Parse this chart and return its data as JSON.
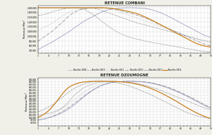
{
  "title1": "RETENUE COMBANI",
  "title2": "RETENUE DZOUMOGNE",
  "ylabel": "Retenue Mm³",
  "legend_labels": [
    "Nivelles 2009",
    "Nivelles 2010",
    "Nivelles 2011",
    "Nivelles 2012",
    "Nivelles 2013",
    "Nivelles 2014"
  ],
  "colors_map": {
    "2009": "#b0b0b0",
    "2010": "#909090",
    "2011": "#a0a0a0",
    "2012": "#808080",
    "2013": "#9090bb",
    "2014": "#c88020"
  },
  "ls_map": {
    "2009": "-",
    "2010": "--",
    "2011": ":",
    "2012": "-.",
    "2013": "-",
    "2014": "-"
  },
  "lw_map": {
    "2009": 0.5,
    "2010": 0.5,
    "2011": 0.5,
    "2012": 0.5,
    "2013": 0.5,
    "2014": 0.9
  },
  "combani": {
    "2009": [
      1.48,
      1.48,
      1.48,
      1.48,
      1.48,
      1.48,
      1.48,
      1.48,
      1.48,
      1.48,
      1.48,
      1.48,
      1.48,
      1.465,
      1.44,
      1.41,
      1.375,
      1.335,
      1.29,
      1.245,
      1.2,
      1.16,
      1.12,
      1.085,
      1.055,
      1.03,
      1.005,
      0.985,
      0.97,
      0.955,
      0.945,
      0.93,
      0.915,
      0.905,
      0.895,
      0.885,
      0.875,
      0.865,
      0.855,
      0.845,
      0.835,
      0.825,
      0.815,
      0.805,
      0.795,
      0.785,
      0.775,
      0.765,
      0.755,
      0.745,
      0.74,
      0.735
    ],
    "2010": [
      1.35,
      1.36,
      1.37,
      1.39,
      1.41,
      1.43,
      1.44,
      1.455,
      1.465,
      1.475,
      1.478,
      1.48,
      1.48,
      1.48,
      1.48,
      1.48,
      1.475,
      1.465,
      1.45,
      1.43,
      1.41,
      1.39,
      1.37,
      1.35,
      1.33,
      1.31,
      1.29,
      1.27,
      1.25,
      1.23,
      1.215,
      1.2,
      1.185,
      1.17,
      1.155,
      1.14,
      1.125,
      1.11,
      1.095,
      1.08,
      1.065,
      1.05,
      1.035,
      1.02,
      1.005,
      0.99,
      0.975,
      0.96,
      0.945,
      0.93,
      0.92,
      0.91
    ],
    "2011": [
      1.1,
      1.13,
      1.16,
      1.19,
      1.22,
      1.26,
      1.3,
      1.34,
      1.37,
      1.4,
      1.42,
      1.44,
      1.455,
      1.468,
      1.475,
      1.478,
      1.48,
      1.48,
      1.48,
      1.478,
      1.47,
      1.46,
      1.445,
      1.43,
      1.41,
      1.39,
      1.37,
      1.35,
      1.33,
      1.31,
      1.29,
      1.27,
      1.25,
      1.23,
      1.21,
      1.19,
      1.17,
      1.15,
      1.13,
      1.11,
      1.09,
      1.07,
      1.05,
      1.03,
      1.01,
      0.99,
      0.97,
      0.95,
      0.93,
      0.91,
      0.9,
      0.89
    ],
    "2012": [
      0.92,
      0.96,
      1.0,
      1.04,
      1.08,
      1.13,
      1.18,
      1.23,
      1.285,
      1.34,
      1.38,
      1.41,
      1.44,
      1.455,
      1.465,
      1.472,
      1.478,
      1.48,
      1.48,
      1.48,
      1.478,
      1.47,
      1.46,
      1.45,
      1.435,
      1.42,
      1.405,
      1.39,
      1.375,
      1.36,
      1.34,
      1.32,
      1.3,
      1.275,
      1.25,
      1.22,
      1.195,
      1.17,
      1.145,
      1.12,
      1.095,
      1.07,
      1.045,
      1.02,
      0.995,
      0.97,
      0.945,
      0.92,
      0.895,
      0.87,
      0.855,
      0.84
    ],
    "2013": [
      0.78,
      0.81,
      0.84,
      0.87,
      0.9,
      0.935,
      0.97,
      1.005,
      1.04,
      1.075,
      1.115,
      1.155,
      1.195,
      1.235,
      1.27,
      1.3,
      1.33,
      1.36,
      1.39,
      1.415,
      1.435,
      1.45,
      1.46,
      1.468,
      1.475,
      1.478,
      1.48,
      1.48,
      1.48,
      1.478,
      1.475,
      1.47,
      1.465,
      1.455,
      1.44,
      1.42,
      1.4,
      1.375,
      1.35,
      1.32,
      1.29,
      1.26,
      1.23,
      1.2,
      1.17,
      1.14,
      1.11,
      1.08,
      1.05,
      1.02,
      1.0,
      0.98
    ],
    "2014": [
      1.48,
      1.48,
      1.48,
      1.48,
      1.48,
      1.48,
      1.48,
      1.48,
      1.48,
      1.48,
      1.48,
      1.48,
      1.48,
      1.48,
      1.48,
      1.48,
      1.48,
      1.48,
      1.48,
      1.48,
      1.478,
      1.474,
      1.468,
      1.46,
      1.45,
      1.44,
      1.428,
      1.414,
      1.4,
      1.385,
      1.365,
      1.34,
      1.315,
      1.288,
      1.26,
      1.23,
      1.2,
      1.17,
      1.14,
      1.11,
      1.08,
      1.05,
      1.02,
      0.99,
      0.96,
      0.93,
      0.9,
      0.875,
      0.855,
      0.84,
      0.83,
      0.82
    ]
  },
  "dzoumogne": {
    "2009": [
      0.15,
      0.16,
      0.17,
      0.18,
      0.19,
      0.21,
      0.23,
      0.26,
      0.3,
      0.35,
      0.41,
      0.46,
      0.5,
      0.54,
      0.57,
      0.59,
      0.61,
      0.625,
      0.635,
      0.64,
      0.645,
      0.648,
      0.65,
      0.65,
      0.648,
      0.645,
      0.64,
      0.635,
      0.628,
      0.62,
      0.61,
      0.598,
      0.585,
      0.57,
      0.555,
      0.538,
      0.52,
      0.5,
      0.48,
      0.46,
      0.44,
      0.42,
      0.4,
      0.38,
      0.36,
      0.34,
      0.32,
      0.3,
      0.28,
      0.26,
      0.245,
      0.23
    ],
    "2010": [
      0.2,
      0.22,
      0.245,
      0.27,
      0.3,
      0.335,
      0.37,
      0.41,
      0.45,
      0.49,
      0.525,
      0.555,
      0.58,
      0.6,
      0.618,
      0.632,
      0.641,
      0.647,
      0.65,
      0.65,
      0.648,
      0.644,
      0.638,
      0.63,
      0.62,
      0.608,
      0.594,
      0.578,
      0.56,
      0.54,
      0.52,
      0.5,
      0.48,
      0.458,
      0.435,
      0.41,
      0.385,
      0.36,
      0.335,
      0.31,
      0.285,
      0.26,
      0.235,
      0.21,
      0.19,
      0.17,
      0.155,
      0.14,
      0.128,
      0.118,
      0.11,
      0.105
    ],
    "2011": [
      0.1,
      0.115,
      0.13,
      0.148,
      0.168,
      0.19,
      0.215,
      0.245,
      0.278,
      0.315,
      0.355,
      0.395,
      0.434,
      0.47,
      0.505,
      0.536,
      0.562,
      0.584,
      0.601,
      0.614,
      0.624,
      0.632,
      0.638,
      0.642,
      0.645,
      0.647,
      0.648,
      0.649,
      0.65,
      0.649,
      0.647,
      0.643,
      0.637,
      0.629,
      0.619,
      0.607,
      0.593,
      0.577,
      0.559,
      0.54,
      0.519,
      0.497,
      0.474,
      0.45,
      0.425,
      0.4,
      0.374,
      0.348,
      0.322,
      0.296,
      0.275,
      0.256
    ],
    "2012": [
      0.08,
      0.09,
      0.1,
      0.115,
      0.132,
      0.152,
      0.175,
      0.202,
      0.232,
      0.266,
      0.302,
      0.34,
      0.378,
      0.416,
      0.453,
      0.488,
      0.52,
      0.548,
      0.572,
      0.593,
      0.61,
      0.623,
      0.633,
      0.64,
      0.644,
      0.647,
      0.649,
      0.65,
      0.65,
      0.649,
      0.647,
      0.643,
      0.638,
      0.631,
      0.622,
      0.611,
      0.598,
      0.584,
      0.568,
      0.55,
      0.531,
      0.51,
      0.488,
      0.465,
      0.441,
      0.416,
      0.39,
      0.364,
      0.337,
      0.31,
      0.287,
      0.266
    ],
    "2013": [
      0.08,
      0.09,
      0.1,
      0.112,
      0.126,
      0.143,
      0.162,
      0.185,
      0.212,
      0.243,
      0.278,
      0.316,
      0.357,
      0.399,
      0.44,
      0.478,
      0.513,
      0.544,
      0.571,
      0.593,
      0.611,
      0.625,
      0.635,
      0.642,
      0.646,
      0.649,
      0.65,
      0.65,
      0.649,
      0.647,
      0.644,
      0.639,
      0.633,
      0.625,
      0.615,
      0.603,
      0.59,
      0.575,
      0.558,
      0.539,
      0.519,
      0.498,
      0.476,
      0.453,
      0.429,
      0.404,
      0.378,
      0.352,
      0.325,
      0.298,
      0.274,
      0.252
    ],
    "2014": [
      0.12,
      0.145,
      0.175,
      0.215,
      0.265,
      0.325,
      0.39,
      0.455,
      0.515,
      0.56,
      0.59,
      0.61,
      0.625,
      0.636,
      0.643,
      0.647,
      0.649,
      0.65,
      0.65,
      0.65,
      0.65,
      0.649,
      0.648,
      0.646,
      0.643,
      0.639,
      0.634,
      0.628,
      0.62,
      0.61,
      0.598,
      0.584,
      0.568,
      0.55,
      0.53,
      0.508,
      0.485,
      0.46,
      0.434,
      0.407,
      0.379,
      0.35,
      0.32,
      0.29,
      0.26,
      0.232,
      0.205,
      0.18,
      0.157,
      0.136,
      0.118,
      0.103
    ]
  },
  "combani_ylim": [
    0.72,
    1.52
  ],
  "combani_yticks": [
    0.76,
    0.84,
    0.92,
    1.0,
    1.08,
    1.16,
    1.24,
    1.32,
    1.4,
    1.48
  ],
  "combani_ytick_labels": [
    "760,000",
    "840,000",
    "920,000",
    "1,000,000",
    "1,080,000",
    "1,160,000",
    "1,240,000",
    "1,320,000",
    "1,400,000",
    "1,480,000"
  ],
  "dzoumogne_ylim": [
    0.0,
    0.7
  ],
  "dzoumogne_yticks": [
    0.04,
    0.08,
    0.12,
    0.16,
    0.2,
    0.24,
    0.28,
    0.32,
    0.36,
    0.4,
    0.44,
    0.48,
    0.52,
    0.56,
    0.6,
    0.64,
    0.68
  ],
  "dzoumogne_ytick_labels": [
    "40,000",
    "80,000",
    "120,000",
    "160,000",
    "200,000",
    "240,000",
    "280,000",
    "320,000",
    "360,000",
    "400,000",
    "440,000",
    "480,000",
    "520,000",
    "560,000",
    "600,000",
    "640,000",
    "680,000"
  ],
  "bg_color": "#f0f0e8",
  "plot_bg": "#ffffff",
  "grid_color": "#d0d0d0"
}
